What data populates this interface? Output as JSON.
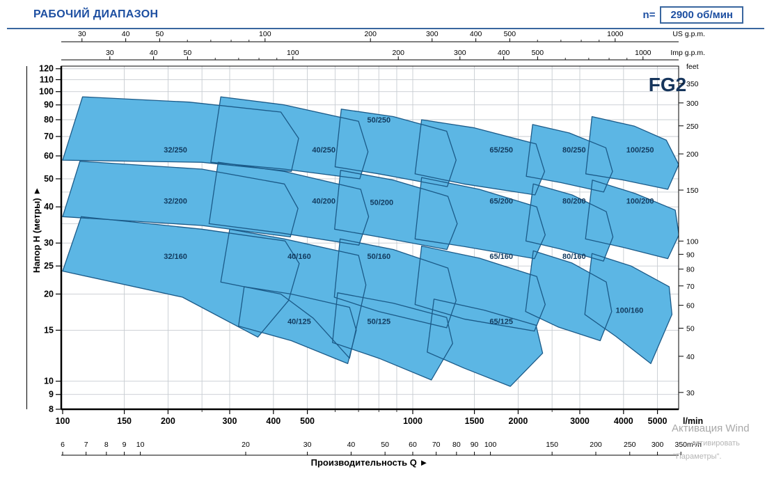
{
  "header": {
    "title": "РАБОЧИЙ ДИАПАЗОН",
    "rpm_label": "n=",
    "rpm_value": "2900 об/мин"
  },
  "watermark": {
    "lines": [
      "Активация Wind",
      "активировать",
      "\"Параметры\"."
    ]
  },
  "colors": {
    "region_fill": "#5cb6e4",
    "region_stroke": "#1b5a88",
    "region_label": "#123a5e",
    "grid": "#c7ccd1",
    "accent_blue": "#1d4fa1"
  },
  "chart_data": {
    "type": "area",
    "title": "РАБОЧИЙ ДИАПАЗОН",
    "model_family": "FG2",
    "speed": "2900 об/мин",
    "x_log": true,
    "y_log": true,
    "x_range_lmin": [
      100,
      5750
    ],
    "y_range_m": [
      8,
      122
    ],
    "xlabel": "Производительность Q",
    "arrow": "►",
    "axes": {
      "us_gpm": {
        "unit": "US g.p.m.",
        "ticks": [
          30,
          40,
          50,
          100,
          200,
          300,
          400,
          500,
          1000
        ]
      },
      "imp_gpm": {
        "unit": "Imp g.p.m.",
        "ticks": [
          30,
          40,
          50,
          100,
          200,
          300,
          400,
          500,
          1000
        ]
      },
      "gpm_minor": [
        60,
        70,
        80,
        90,
        600,
        700,
        800,
        900
      ],
      "lmin": {
        "unit": "l/min",
        "ticks": [
          100,
          150,
          200,
          300,
          400,
          500,
          1000,
          1500,
          2000,
          3000,
          4000,
          5000
        ]
      },
      "m3h": {
        "unit": "m³/h",
        "ticks": [
          6,
          7,
          8,
          9,
          10,
          20,
          30,
          40,
          50,
          60,
          70,
          80,
          90,
          100,
          150,
          200,
          250,
          300,
          350
        ]
      },
      "meters": {
        "label": "Напор H (метры)",
        "ticks": [
          120,
          110,
          100,
          90,
          80,
          70,
          60,
          50,
          40,
          30,
          25,
          20,
          15,
          10,
          9,
          8
        ]
      },
      "feet": {
        "unit": "feet",
        "ticks": [
          350,
          300,
          250,
          200,
          150,
          100,
          90,
          80,
          70,
          60,
          50,
          40,
          30
        ]
      }
    },
    "grid": {
      "q_lines": [
        150,
        200,
        250,
        300,
        400,
        500,
        600,
        700,
        800,
        900,
        1000,
        1500,
        2000,
        2500,
        3000,
        4000,
        5000
      ],
      "h_lines": [
        9,
        10,
        15,
        20,
        25,
        30,
        35,
        40,
        45,
        50,
        60,
        70,
        80,
        90,
        100,
        110,
        120
      ]
    },
    "series": [
      {
        "name": "32/250",
        "label_at": [
          210,
          63
        ],
        "points": [
          [
            100,
            58
          ],
          [
            114,
            96
          ],
          [
            230,
            92
          ],
          [
            420,
            85
          ],
          [
            472,
            69
          ],
          [
            450,
            53
          ],
          [
            250,
            57
          ],
          [
            100,
            58
          ]
        ]
      },
      {
        "name": "40/250",
        "label_at": [
          557,
          63
        ],
        "points": [
          [
            265,
            57
          ],
          [
            283,
            96
          ],
          [
            430,
            90
          ],
          [
            700,
            79
          ],
          [
            745,
            62
          ],
          [
            706,
            50
          ],
          [
            430,
            54
          ],
          [
            265,
            57
          ]
        ]
      },
      {
        "name": "50/250",
        "label_at": [
          800,
          80
        ],
        "points": [
          [
            600,
            55
          ],
          [
            625,
            87
          ],
          [
            880,
            82
          ],
          [
            1250,
            73
          ],
          [
            1330,
            58
          ],
          [
            1255,
            47
          ],
          [
            800,
            52
          ],
          [
            600,
            55
          ]
        ]
      },
      {
        "name": "65/250",
        "label_at": [
          1790,
          63
        ],
        "points": [
          [
            1015,
            52
          ],
          [
            1060,
            80
          ],
          [
            1500,
            75
          ],
          [
            2250,
            66
          ],
          [
            2380,
            53
          ],
          [
            2235,
            44
          ],
          [
            1400,
            48
          ],
          [
            1015,
            52
          ]
        ]
      },
      {
        "name": "80/250",
        "label_at": [
          2890,
          63
        ],
        "points": [
          [
            2110,
            51
          ],
          [
            2200,
            77
          ],
          [
            2800,
            72
          ],
          [
            3560,
            64
          ],
          [
            3720,
            53
          ],
          [
            3510,
            45
          ],
          [
            2650,
            48.5
          ],
          [
            2110,
            51
          ]
        ]
      },
      {
        "name": "100/250",
        "label_at": [
          4460,
          63
        ],
        "points": [
          [
            3120,
            52
          ],
          [
            3250,
            82
          ],
          [
            4300,
            76
          ],
          [
            5300,
            68
          ],
          [
            5750,
            56
          ],
          [
            5350,
            46
          ],
          [
            4000,
            49.5
          ],
          [
            3120,
            52
          ]
        ]
      },
      {
        "name": "32/200",
        "label_at": [
          210,
          42
        ],
        "points": [
          [
            100,
            37
          ],
          [
            112,
            57.5
          ],
          [
            250,
            54
          ],
          [
            430,
            48
          ],
          [
            470,
            39.5
          ],
          [
            447,
            31.5
          ],
          [
            250,
            34.5
          ],
          [
            100,
            37
          ]
        ]
      },
      {
        "name": "40/200",
        "label_at": [
          557,
          42
        ],
        "points": [
          [
            262,
            35
          ],
          [
            278,
            57
          ],
          [
            430,
            53
          ],
          [
            710,
            46
          ],
          [
            748,
            37
          ],
          [
            702,
            29.5
          ],
          [
            420,
            32.5
          ],
          [
            262,
            35
          ]
        ]
      },
      {
        "name": "50/200",
        "label_at": [
          815,
          41.5
        ],
        "points": [
          [
            598,
            33.5
          ],
          [
            622,
            53.5
          ],
          [
            880,
            49.5
          ],
          [
            1260,
            43.5
          ],
          [
            1340,
            35
          ],
          [
            1252,
            28.5
          ],
          [
            800,
            31.5
          ],
          [
            598,
            33.5
          ]
        ]
      },
      {
        "name": "65/200",
        "label_at": [
          1790,
          42
        ],
        "points": [
          [
            1015,
            31
          ],
          [
            1060,
            50.5
          ],
          [
            1550,
            46
          ],
          [
            2260,
            40
          ],
          [
            2390,
            32
          ],
          [
            2226,
            26.5
          ],
          [
            1400,
            29.2
          ],
          [
            1015,
            31
          ]
        ]
      },
      {
        "name": "80/200",
        "label_at": [
          2890,
          42
        ],
        "points": [
          [
            2105,
            30.5
          ],
          [
            2210,
            48
          ],
          [
            2850,
            44
          ],
          [
            3570,
            38.5
          ],
          [
            3730,
            31.5
          ],
          [
            3505,
            26
          ],
          [
            2640,
            28.6
          ],
          [
            2105,
            30.5
          ]
        ]
      },
      {
        "name": "100/200",
        "label_at": [
          4460,
          42
        ],
        "points": [
          [
            3115,
            31
          ],
          [
            3260,
            49.5
          ],
          [
            4320,
            44.5
          ],
          [
            5620,
            39
          ],
          [
            5758,
            32
          ],
          [
            5350,
            26.5
          ],
          [
            3980,
            29
          ],
          [
            3115,
            31
          ]
        ]
      },
      {
        "name": "32/160",
        "label_at": [
          210,
          27
        ],
        "points": [
          [
            100,
            24
          ],
          [
            113,
            37
          ],
          [
            250,
            33.5
          ],
          [
            432,
            30.5
          ],
          [
            474,
            25.5
          ],
          [
            442,
            19
          ],
          [
            361,
            14.2
          ],
          [
            220,
            19.5
          ],
          [
            100,
            24
          ]
        ]
      },
      {
        "name": "40/160",
        "label_at": [
          474,
          27
        ],
        "points": [
          [
            283,
            22
          ],
          [
            300,
            33.5
          ],
          [
            430,
            31
          ],
          [
            700,
            27.2
          ],
          [
            735,
            21.5
          ],
          [
            660,
            12
          ],
          [
            520,
            16.5
          ],
          [
            420,
            20
          ],
          [
            283,
            22
          ]
        ]
      },
      {
        "name": "50/160",
        "label_at": [
          800,
          27
        ],
        "points": [
          [
            597,
            19.5
          ],
          [
            620,
            31
          ],
          [
            880,
            28.5
          ],
          [
            1260,
            24.6
          ],
          [
            1330,
            19
          ],
          [
            1250,
            15.3
          ],
          [
            800,
            17.4
          ],
          [
            597,
            19.5
          ]
        ]
      },
      {
        "name": "65/160",
        "label_at": [
          1790,
          27
        ],
        "points": [
          [
            1015,
            18.4
          ],
          [
            1060,
            29.3
          ],
          [
            1550,
            26.6
          ],
          [
            2260,
            23
          ],
          [
            2390,
            18.4
          ],
          [
            2226,
            14.9
          ],
          [
            1400,
            16.4
          ],
          [
            1015,
            18.4
          ]
        ]
      },
      {
        "name": "80/160",
        "label_at": [
          2890,
          27
        ],
        "points": [
          [
            2100,
            17.4
          ],
          [
            2210,
            28.2
          ],
          [
            2850,
            25.6
          ],
          [
            3570,
            22
          ],
          [
            3700,
            17.4
          ],
          [
            3430,
            13.8
          ],
          [
            2600,
            15.4
          ],
          [
            2100,
            17.4
          ]
        ]
      },
      {
        "name": "100/160",
        "label_at": [
          4160,
          17.6
        ],
        "points": [
          [
            3100,
            17
          ],
          [
            3250,
            27.6
          ],
          [
            4200,
            25
          ],
          [
            5400,
            21.2
          ],
          [
            5500,
            17
          ],
          [
            4786,
            11.5
          ],
          [
            3800,
            14.3
          ],
          [
            3100,
            17
          ]
        ]
      },
      {
        "name": "40/125",
        "label_at": [
          474,
          16.1
        ],
        "points": [
          [
            318,
            15.5
          ],
          [
            330,
            21.2
          ],
          [
            450,
            20
          ],
          [
            660,
            18
          ],
          [
            690,
            15
          ],
          [
            652,
            11.5
          ],
          [
            450,
            13.8
          ],
          [
            318,
            15.5
          ]
        ]
      },
      {
        "name": "50/125",
        "label_at": [
          800,
          16.1
        ],
        "points": [
          [
            590,
            13.6
          ],
          [
            610,
            20.2
          ],
          [
            880,
            18.6
          ],
          [
            1250,
            16.6
          ],
          [
            1300,
            13.5
          ],
          [
            1130,
            10.1
          ],
          [
            800,
            12
          ],
          [
            590,
            13.6
          ]
        ]
      },
      {
        "name": "65/125",
        "label_at": [
          1790,
          16.1
        ],
        "points": [
          [
            1100,
            12.6
          ],
          [
            1150,
            19.2
          ],
          [
            1600,
            17.6
          ],
          [
            2250,
            15.6
          ],
          [
            2350,
            12.5
          ],
          [
            1900,
            9.6
          ],
          [
            1400,
            11.1
          ],
          [
            1100,
            12.6
          ]
        ]
      }
    ]
  }
}
